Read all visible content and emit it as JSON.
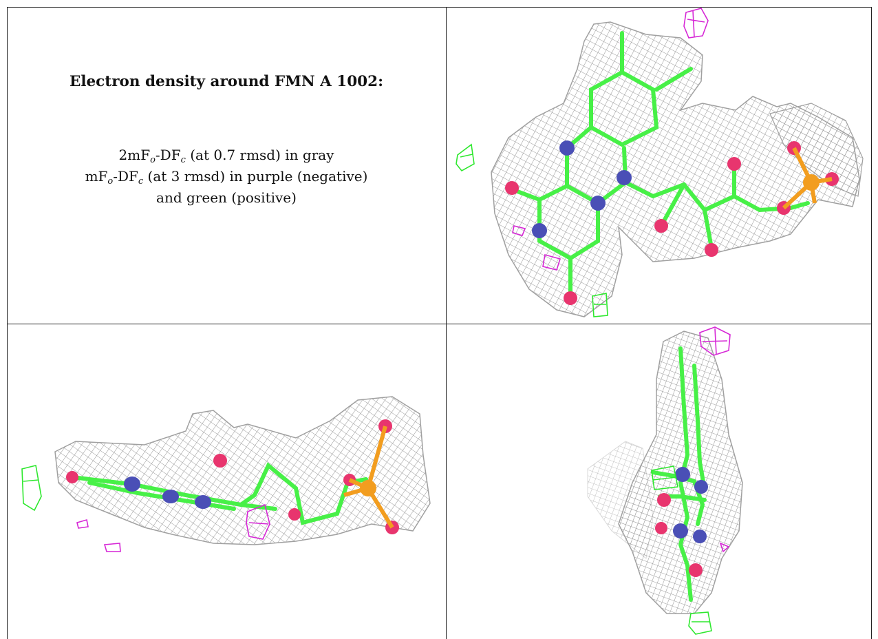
{
  "title": "Electron density around FMN A 1002:",
  "legend": {
    "line1": {
      "pre": "2mF",
      "s1": "o",
      "mid": "-DF",
      "s2": "c",
      "post": " (at 0.7 rmsd) in gray"
    },
    "line2": {
      "pre": "mF",
      "s1": "o",
      "mid": "-DF",
      "s2": "c",
      "post": " (at 3 rmsd) in purple (negative)"
    },
    "line3": "and green (positive)"
  },
  "colors": {
    "mesh_gray": "#9a9a9a",
    "carbon_green": "#47f047",
    "oxygen_red": "#e8356e",
    "nitrogen_blue": "#4a4fb6",
    "phosphorus_orange": "#f29d1f",
    "negative_purple": "#d627d6",
    "positive_green": "#2ee82e",
    "border": "#222222"
  },
  "panels": [
    {
      "view": "front"
    },
    {
      "view": "side"
    },
    {
      "view": "end-on"
    }
  ]
}
